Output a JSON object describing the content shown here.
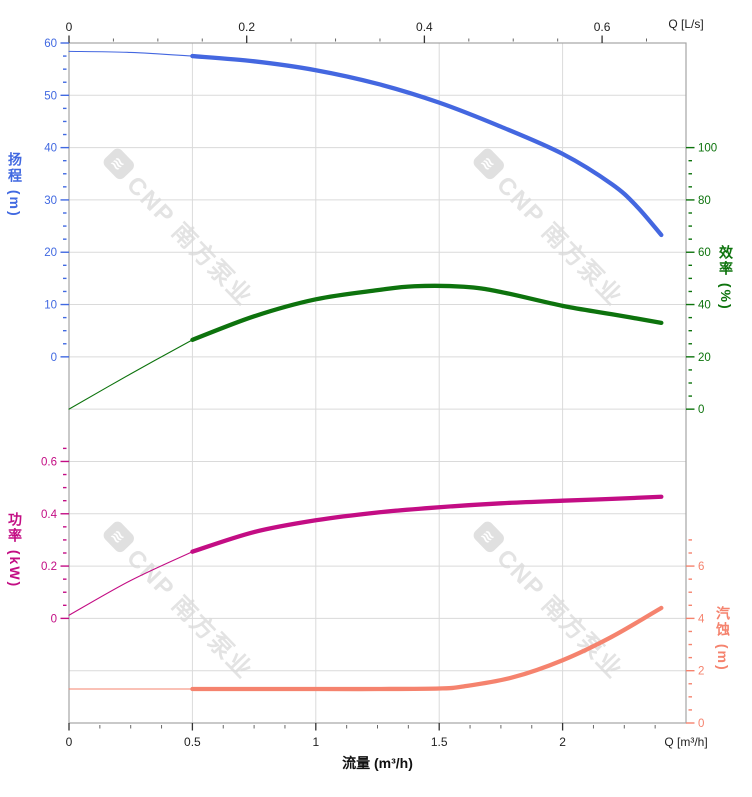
{
  "watermark": {
    "text": "CNP 南方泵业"
  },
  "chart_data": {
    "type": "line",
    "x_axis_bottom": {
      "title": "流量 (m³/h)",
      "unit_label": "Q [m³/h]",
      "range": [
        0,
        2.5
      ],
      "major_ticks": [
        0,
        0.5,
        1,
        1.5,
        2
      ],
      "minor_step": 0.125
    },
    "x_axis_top": {
      "unit_label": "Q [L/s]",
      "range": [
        0,
        0.694
      ],
      "major_ticks": [
        0,
        0.2,
        0.4,
        0.6
      ],
      "minor_step": 0.05,
      "ls_to_m3h": 3.6
    },
    "y_axes": [
      {
        "id": "head",
        "title": "扬程 (m)",
        "side": "left",
        "color": "#4169e1",
        "range": [
          0,
          60
        ],
        "major_ticks": [
          0,
          10,
          20,
          30,
          40,
          50,
          60
        ],
        "minor_step": 2.5,
        "minor_max": 60
      },
      {
        "id": "eff",
        "title": "效率 (%)",
        "side": "right",
        "color": "#0d730d",
        "range": [
          0,
          100
        ],
        "major_ticks": [
          0,
          20,
          40,
          60,
          80,
          100
        ],
        "minor_step": 5,
        "minor_max": 100
      },
      {
        "id": "power",
        "title": "功率 (kW)",
        "side": "left",
        "color": "#c30d84",
        "range": [
          0,
          0.6
        ],
        "major_ticks": [
          0,
          0.2,
          0.4,
          0.6
        ],
        "minor_step": 0.05,
        "minor_max": 0.65
      },
      {
        "id": "npsh",
        "title": "汽蚀 (m)",
        "side": "right",
        "color": "#f5836e",
        "range": [
          0,
          6
        ],
        "major_ticks": [
          0,
          2,
          4,
          6
        ],
        "minor_step": 0.5,
        "minor_max": 7
      }
    ],
    "series": [
      {
        "name": "扬程",
        "axis": "head",
        "color": "#4467e0",
        "highlight_from": 0.5,
        "points": [
          [
            0,
            58.4
          ],
          [
            0.25,
            58.2
          ],
          [
            0.5,
            57.5
          ],
          [
            0.75,
            56.5
          ],
          [
            1.0,
            54.8
          ],
          [
            1.25,
            52.2
          ],
          [
            1.5,
            48.6
          ],
          [
            1.75,
            44.0
          ],
          [
            2.0,
            38.8
          ],
          [
            2.2,
            33.0
          ],
          [
            2.3,
            28.8
          ],
          [
            2.4,
            23.3
          ]
        ]
      },
      {
        "name": "效率",
        "axis": "eff",
        "color": "#0d730d",
        "highlight_from": 0.5,
        "points": [
          [
            0,
            0
          ],
          [
            0.25,
            13.5
          ],
          [
            0.5,
            26.5
          ],
          [
            0.75,
            35.5
          ],
          [
            1.0,
            42.0
          ],
          [
            1.25,
            45.5
          ],
          [
            1.4,
            47.0
          ],
          [
            1.6,
            46.8
          ],
          [
            1.75,
            44.8
          ],
          [
            2.0,
            39.5
          ],
          [
            2.2,
            36.3
          ],
          [
            2.4,
            33.0
          ]
        ]
      },
      {
        "name": "功率",
        "axis": "power",
        "color": "#c30d84",
        "highlight_from": 0.5,
        "points": [
          [
            0,
            0.012
          ],
          [
            0.25,
            0.145
          ],
          [
            0.5,
            0.255
          ],
          [
            0.75,
            0.33
          ],
          [
            1.0,
            0.375
          ],
          [
            1.25,
            0.405
          ],
          [
            1.5,
            0.425
          ],
          [
            1.75,
            0.44
          ],
          [
            2.0,
            0.45
          ],
          [
            2.2,
            0.457
          ],
          [
            2.4,
            0.465
          ]
        ]
      },
      {
        "name": "汽蚀",
        "axis": "npsh",
        "color": "#f5836e",
        "highlight_from": 0.5,
        "points": [
          [
            0,
            1.3
          ],
          [
            0.5,
            1.3
          ],
          [
            1.0,
            1.3
          ],
          [
            1.25,
            1.3
          ],
          [
            1.5,
            1.32
          ],
          [
            1.6,
            1.4
          ],
          [
            1.8,
            1.75
          ],
          [
            2.0,
            2.4
          ],
          [
            2.2,
            3.3
          ],
          [
            2.4,
            4.4
          ]
        ]
      }
    ],
    "grid": {
      "on": true,
      "color": "#dadada",
      "border_color": "#a5a5a5"
    },
    "legend": {
      "position": "none"
    }
  }
}
